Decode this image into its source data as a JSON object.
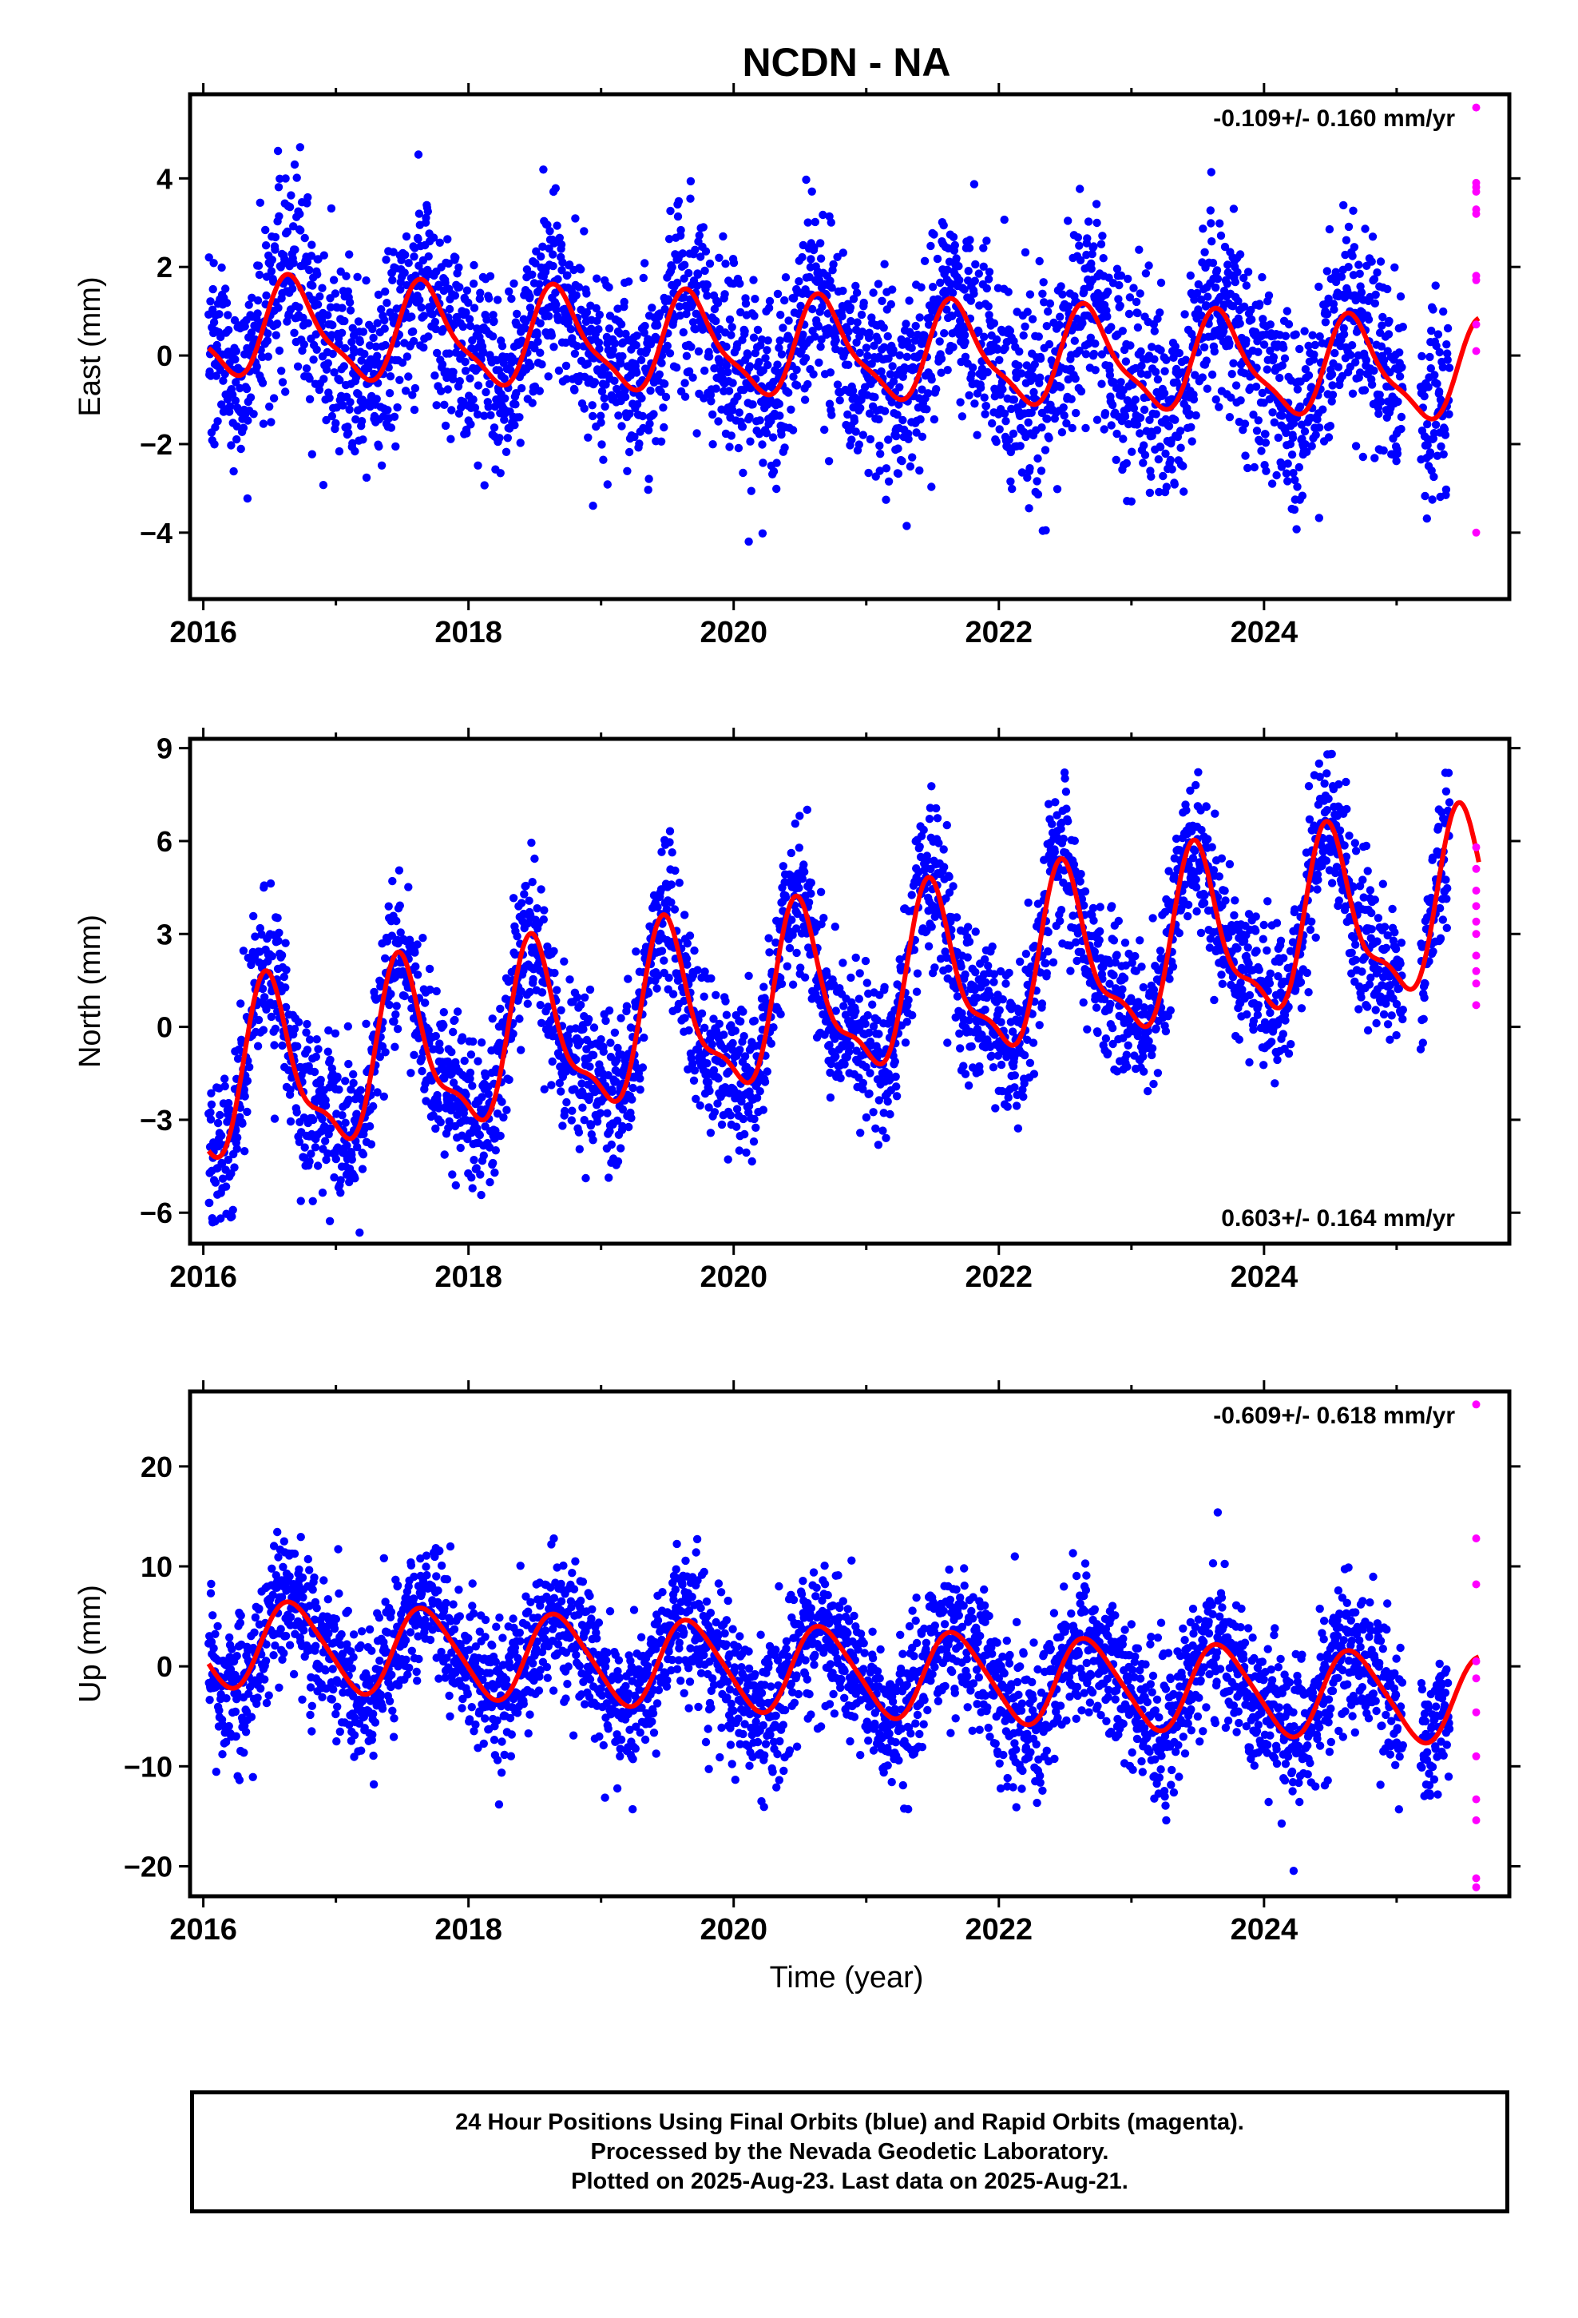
{
  "title": "NCDN - NA",
  "xlabel": "Time (year)",
  "caption": [
    "24 Hour Positions Using Final Orbits (blue) and Rapid Orbits (magenta).",
    "Processed by the Nevada Geodetic Laboratory.",
    "Plotted on 2025-Aug-23. Last data on 2025-Aug-21."
  ],
  "colors": {
    "final": "#0000ff",
    "rapid": "#ff00ff",
    "model": "#ff0000",
    "frame": "#000000"
  },
  "chart_data": [
    {
      "type": "scatter",
      "ylabel": "East (mm)",
      "rate_text": "-0.109+/- 0.160 mm/yr",
      "rate_position": "top-right",
      "xlim": [
        2015.9,
        2025.85
      ],
      "ylim": [
        -5.5,
        5.9
      ],
      "xticks": [
        2016,
        2018,
        2020,
        2022,
        2024
      ],
      "xtick_labels": [
        "2016",
        "2018",
        "2020",
        "2022",
        "2024"
      ],
      "yticks": [
        -4,
        -2,
        0,
        2,
        4
      ],
      "ytick_labels": [
        "−4",
        "−2",
        "0",
        "2",
        "4"
      ],
      "model": {
        "offset": 0.1,
        "rate": -0.109,
        "t0": 2020.8,
        "annual_amp": 1.05,
        "annual_peak": 2016.68,
        "semi_amp": 0.3,
        "semi_peak": 2016.6
      },
      "scatter_sigma": 1.1,
      "final_range": [
        2016.04,
        2025.4
      ],
      "final_gap": [
        2025.05,
        2025.18
      ],
      "rapid_x": 2025.6,
      "rapid_values": [
        5.6,
        3.9,
        3.8,
        3.7,
        3.3,
        3.2,
        1.8,
        1.7,
        0.7,
        0.1,
        -4.0
      ]
    },
    {
      "type": "scatter",
      "ylabel": "North (mm)",
      "rate_text": "0.603+/- 0.164 mm/yr",
      "rate_position": "bottom-right",
      "xlim": [
        2015.9,
        2025.85
      ],
      "ylim": [
        -7.0,
        9.3
      ],
      "xticks": [
        2016,
        2018,
        2020,
        2022,
        2024
      ],
      "xtick_labels": [
        "2016",
        "2018",
        "2020",
        "2022",
        "2024"
      ],
      "yticks": [
        -6,
        -3,
        0,
        3,
        6,
        9
      ],
      "ytick_labels": [
        "−6",
        "−3",
        "0",
        "3",
        "6",
        "9"
      ],
      "model": {
        "offset": 1.0,
        "rate": 0.603,
        "t0": 2020.8,
        "annual_amp": 2.6,
        "annual_peak": 2016.5,
        "semi_amp": 0.9,
        "semi_peak": 2016.45
      },
      "scatter_sigma": 1.2,
      "final_range": [
        2016.04,
        2025.4
      ],
      "final_gap": [
        2025.05,
        2025.18
      ],
      "rapid_x": 2025.6,
      "rapid_values": [
        5.8,
        5.1,
        4.4,
        3.9,
        3.4,
        3.0,
        2.3,
        1.8,
        1.4,
        0.7
      ]
    },
    {
      "type": "scatter",
      "ylabel": "Up (mm)",
      "rate_text": "-0.609+/- 0.618 mm/yr",
      "rate_position": "top-right",
      "xlim": [
        2015.9,
        2025.85
      ],
      "ylim": [
        -23.0,
        27.5
      ],
      "xticks": [
        2016,
        2018,
        2020,
        2022,
        2024
      ],
      "xtick_labels": [
        "2016",
        "2018",
        "2020",
        "2022",
        "2024"
      ],
      "yticks": [
        -20,
        -10,
        0,
        10,
        20
      ],
      "ytick_labels": [
        "−20",
        "−10",
        "0",
        "10",
        "20"
      ],
      "model": {
        "offset": -0.5,
        "rate": -0.609,
        "t0": 2020.8,
        "annual_amp": 4.3,
        "annual_peak": 2016.68,
        "semi_amp": 0.6,
        "semi_peak": 2016.55
      },
      "scatter_sigma": 3.6,
      "final_range": [
        2016.04,
        2025.4
      ],
      "final_gap": [
        2025.05,
        2025.18
      ],
      "rapid_x": 2025.6,
      "rapid_values": [
        26.2,
        12.8,
        8.2,
        0.5,
        -1.2,
        -4.6,
        -9.0,
        -13.3,
        -15.4,
        -21.2,
        -22.1
      ]
    }
  ]
}
